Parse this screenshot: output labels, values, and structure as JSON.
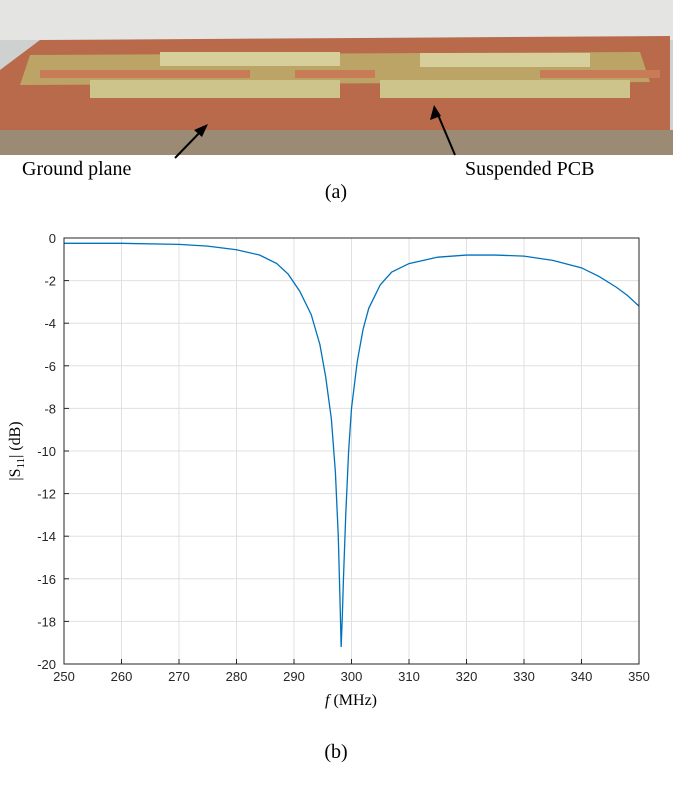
{
  "figure": {
    "photo_labels": [
      "Ground plane",
      "Suspended PCB"
    ],
    "captions": [
      "(a)",
      "(b)"
    ]
  },
  "chart_data": {
    "type": "line",
    "xlabel": [
      "f",
      "(MHz)"
    ],
    "ylabel": [
      "|S",
      "11",
      "| (dB)"
    ],
    "x": [
      250,
      260,
      270,
      275,
      280,
      284,
      287,
      289,
      291,
      293,
      294.5,
      295.5,
      296.5,
      297.2,
      297.7,
      298,
      298.2,
      298.4,
      298.6,
      299,
      299.5,
      300,
      301,
      302,
      303,
      305,
      307,
      310,
      315,
      320,
      325,
      330,
      335,
      340,
      343,
      346,
      348,
      350
    ],
    "values": [
      -0.25,
      -0.25,
      -0.3,
      -0.38,
      -0.55,
      -0.8,
      -1.2,
      -1.7,
      -2.5,
      -3.6,
      -5,
      -6.5,
      -8.5,
      -11,
      -14,
      -17,
      -19.2,
      -17.8,
      -16,
      -13,
      -10,
      -8,
      -5.8,
      -4.3,
      -3.3,
      -2.2,
      -1.6,
      -1.2,
      -0.9,
      -0.8,
      -0.8,
      -0.85,
      -1.05,
      -1.4,
      -1.8,
      -2.3,
      -2.7,
      -3.2
    ],
    "color": "#0072bd",
    "xlim": [
      250,
      350
    ],
    "xticks": [
      250,
      260,
      270,
      280,
      290,
      300,
      310,
      320,
      330,
      340,
      350
    ],
    "ylim": [
      -20,
      0
    ],
    "yticks": [
      -20,
      -18,
      -16,
      -14,
      -12,
      -10,
      -8,
      -6,
      -4,
      -2,
      0
    ],
    "grid": true
  }
}
